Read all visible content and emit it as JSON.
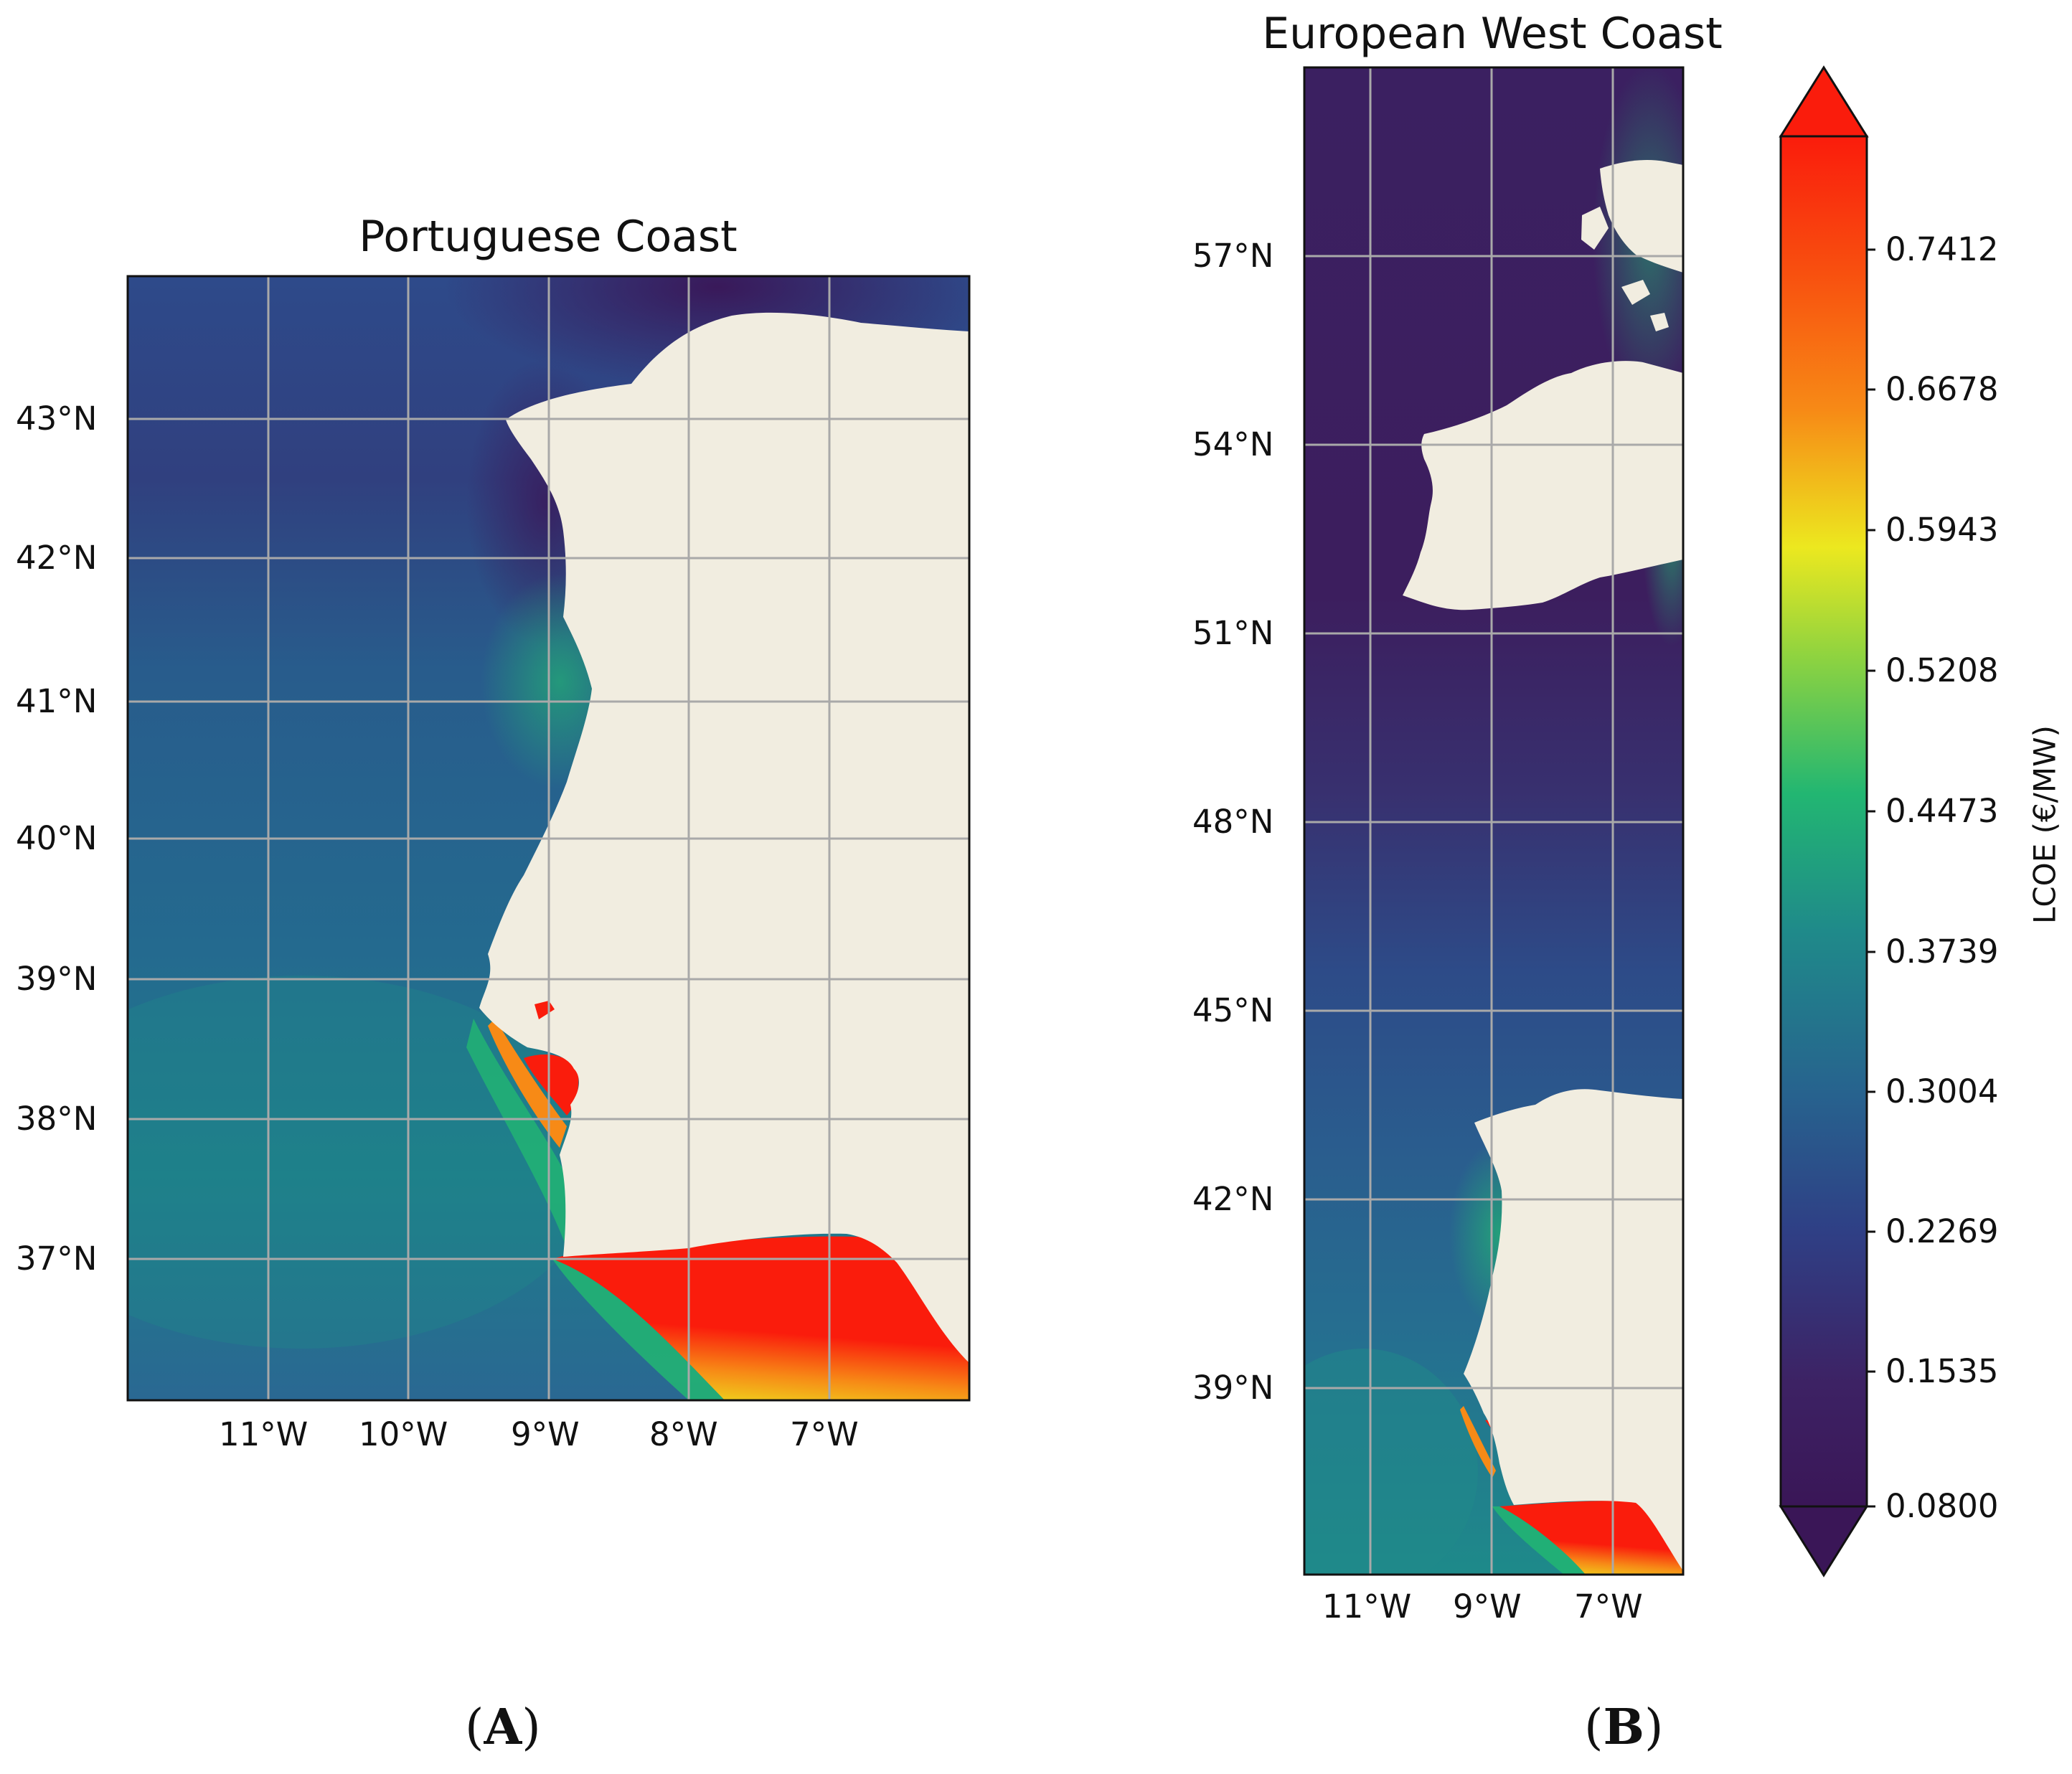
{
  "figure": {
    "panel_a": {
      "title": "Portuguese Coast",
      "label_open": "(",
      "label_letter": "A",
      "label_close": ")",
      "lat_ticks": [
        "43°N",
        "42°N",
        "41°N",
        "40°N",
        "39°N",
        "38°N",
        "37°N"
      ],
      "lon_ticks": [
        "11°W",
        "10°W",
        "9°W",
        "8°W",
        "7°W"
      ],
      "extent": {
        "lon": [
          -12.0,
          -6.0
        ],
        "lat": [
          36.0,
          44.0
        ]
      }
    },
    "panel_b": {
      "title": "European West Coast",
      "label_open": "(",
      "label_letter": "B",
      "label_close": ")",
      "lat_ticks": [
        "57°N",
        "54°N",
        "51°N",
        "48°N",
        "45°N",
        "42°N",
        "39°N"
      ],
      "lon_ticks": [
        "11°W",
        "9°W",
        "7°W"
      ],
      "extent": {
        "lon": [
          -12.0,
          -6.0
        ],
        "lat": [
          36.0,
          60.0
        ]
      }
    },
    "colorbar": {
      "label": "LCOE (€/MW)",
      "ticks": [
        "0.7412",
        "0.6678",
        "0.5943",
        "0.5208",
        "0.4473",
        "0.3739",
        "0.3004",
        "0.2269",
        "0.1535",
        "0.0800"
      ],
      "range": [
        0.08,
        0.8146
      ],
      "extend": "both"
    },
    "colors": {
      "land": "#f1ede0",
      "grid": "#a9a9a9",
      "deep_purple": "#3a1657",
      "indigo": "#2f3f85",
      "blue": "#27628e",
      "teal": "#1f8a8a",
      "green": "#22b672",
      "yellow": "#ece81f",
      "orange": "#f78a16",
      "red": "#fa1c0c"
    }
  },
  "chart_data": [
    {
      "type": "heatmap",
      "title": "Portuguese Coast",
      "xlabel": "",
      "ylabel": "",
      "x_ticks": [
        -11,
        -10,
        -9,
        -8,
        -7
      ],
      "y_ticks": [
        37,
        38,
        39,
        40,
        41,
        42,
        43
      ],
      "xlim": [
        -12.0,
        -6.0
      ],
      "ylim": [
        36.0,
        44.0
      ],
      "variable": "LCOE (€/MW)",
      "grid": true
    },
    {
      "type": "heatmap",
      "title": "European West Coast",
      "xlabel": "",
      "ylabel": "",
      "x_ticks": [
        -11,
        -9,
        -7
      ],
      "y_ticks": [
        39,
        42,
        45,
        48,
        51,
        54,
        57
      ],
      "xlim": [
        -12.0,
        -6.0
      ],
      "ylim": [
        36.0,
        60.0
      ],
      "variable": "LCOE (€/MW)",
      "grid": true
    }
  ]
}
